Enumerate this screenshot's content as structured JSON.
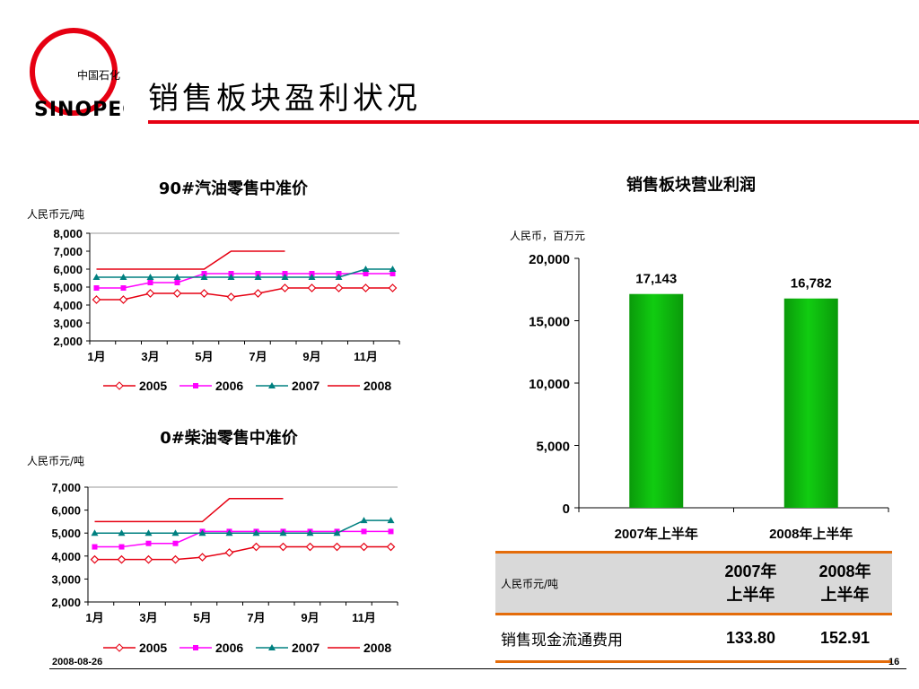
{
  "header": {
    "title": "销售板块盈利状况",
    "logo_text_cn": "中国石化",
    "logo_text_en": "SINOPEC",
    "logo_color": "#e60012"
  },
  "footer": {
    "date": "2008-08-26",
    "page": "16"
  },
  "accent_color": "#e60012",
  "line_colors": {
    "2005": "#e60012",
    "2006": "#ff00ff",
    "2007": "#008080",
    "2008": "#e60012"
  },
  "bar_color": "#11cc11",
  "chart_data": [
    {
      "type": "line",
      "title": "90#汽油零售中准价",
      "ylabel": "人民币元/吨",
      "ylim": [
        2000,
        8000
      ],
      "yticks": [
        "2,000",
        "3,000",
        "4,000",
        "5,000",
        "6,000",
        "7,000",
        "8,000"
      ],
      "x": [
        1,
        2,
        3,
        4,
        5,
        6,
        7,
        8,
        9,
        10,
        11,
        12
      ],
      "xtick_labels": [
        "1月",
        "3月",
        "5月",
        "7月",
        "9月",
        "11月"
      ],
      "series": [
        {
          "name": "2005",
          "values": [
            4300,
            4300,
            4650,
            4650,
            4650,
            4450,
            4650,
            4950,
            4950,
            4950,
            4950,
            4950
          ]
        },
        {
          "name": "2006",
          "values": [
            4950,
            4950,
            5250,
            5250,
            5750,
            5750,
            5750,
            5750,
            5750,
            5750,
            5750,
            5750
          ]
        },
        {
          "name": "2007",
          "values": [
            5550,
            5550,
            5550,
            5550,
            5550,
            5550,
            5550,
            5550,
            5550,
            5550,
            6000,
            6000
          ]
        },
        {
          "name": "2008",
          "values": [
            6000,
            6000,
            6000,
            6000,
            6000,
            7000,
            7000,
            7000,
            null,
            null,
            null,
            null
          ]
        }
      ],
      "legend_position": "bottom"
    },
    {
      "type": "line",
      "title": "0#柴油零售中准价",
      "ylabel": "人民币元/吨",
      "ylim": [
        2000,
        7000
      ],
      "yticks": [
        "2,000",
        "3,000",
        "4,000",
        "5,000",
        "6,000",
        "7,000"
      ],
      "x": [
        1,
        2,
        3,
        4,
        5,
        6,
        7,
        8,
        9,
        10,
        11,
        12
      ],
      "xtick_labels": [
        "1月",
        "3月",
        "5月",
        "7月",
        "9月",
        "11月"
      ],
      "series": [
        {
          "name": "2005",
          "values": [
            3850,
            3850,
            3850,
            3850,
            3950,
            4150,
            4400,
            4400,
            4400,
            4400,
            4400,
            4400
          ]
        },
        {
          "name": "2006",
          "values": [
            4400,
            4400,
            4550,
            4550,
            5070,
            5070,
            5070,
            5070,
            5070,
            5070,
            5070,
            5070
          ]
        },
        {
          "name": "2007",
          "values": [
            5000,
            5000,
            5000,
            5000,
            5000,
            5000,
            5000,
            5000,
            5000,
            5000,
            5550,
            5550
          ]
        },
        {
          "name": "2008",
          "values": [
            5500,
            5500,
            5500,
            5500,
            5500,
            6500,
            6500,
            6500,
            null,
            null,
            null,
            null
          ]
        }
      ],
      "legend_position": "bottom"
    },
    {
      "type": "bar",
      "title": "销售板块营业利润",
      "ylabel": "人民币，百万元",
      "ylim": [
        0,
        20000
      ],
      "yticks": [
        "0",
        "5,000",
        "10,000",
        "15,000",
        "20,000"
      ],
      "categories": [
        "2007年上半年",
        "2008年上半年"
      ],
      "values": [
        17143,
        16782
      ],
      "value_labels": [
        "17,143",
        "16,782"
      ]
    }
  ],
  "table": {
    "unit": "人民币元/吨",
    "headers": [
      [
        "2007年",
        "上半年"
      ],
      [
        "2008年",
        "上半年"
      ]
    ],
    "rows": [
      {
        "label": "销售现金流通费用",
        "values": [
          "133.80",
          "152.91"
        ]
      }
    ]
  }
}
